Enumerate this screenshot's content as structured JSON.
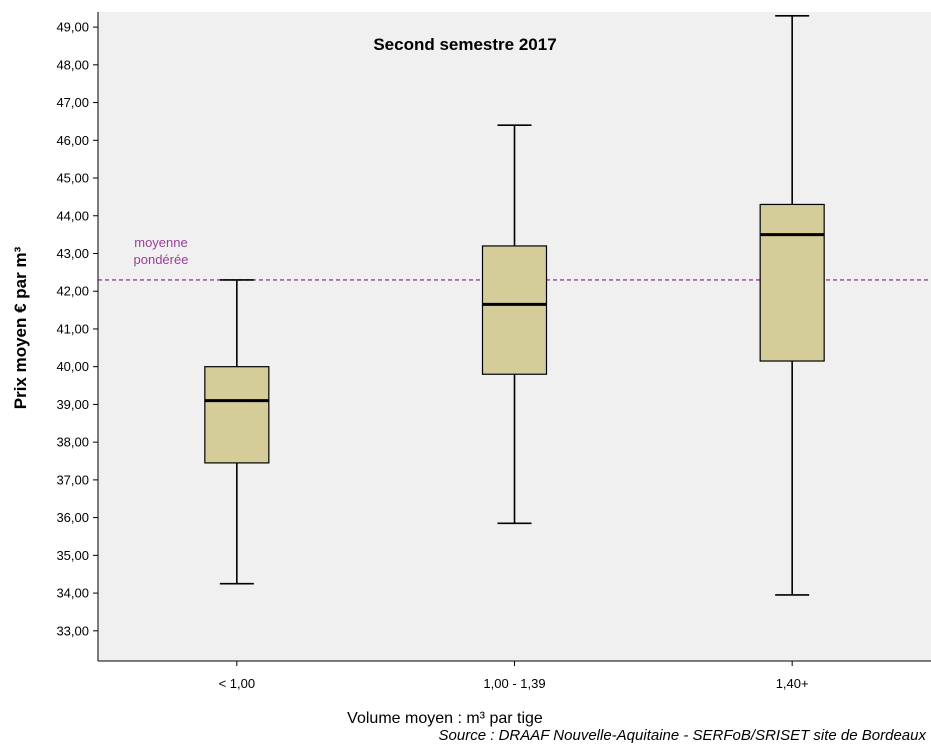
{
  "chart_data": {
    "type": "boxplot",
    "title": "Second semestre 2017",
    "xlabel": "Volume moyen : m³ par tige",
    "ylabel": "Prix moyen € par m³",
    "source": "Source : DRAAF Nouvelle-Aquitaine - SERFoB/SRISET site de Bordeaux",
    "ylim": [
      32.2,
      49.4
    ],
    "yticks": [
      33,
      34,
      35,
      36,
      37,
      38,
      39,
      40,
      41,
      42,
      43,
      44,
      45,
      46,
      47,
      48,
      49
    ],
    "ytick_labels": [
      "33,00",
      "34,00",
      "35,00",
      "36,00",
      "37,00",
      "38,00",
      "39,00",
      "40,00",
      "41,00",
      "42,00",
      "43,00",
      "44,00",
      "45,00",
      "46,00",
      "47,00",
      "48,00",
      "49,00"
    ],
    "categories": [
      "< 1,00",
      "1,00 - 1,39",
      "1,40+"
    ],
    "boxes": [
      {
        "category": "< 1,00",
        "whisker_low": 34.25,
        "q1": 37.45,
        "median": 39.1,
        "q3": 40.0,
        "whisker_high": 42.3
      },
      {
        "category": "1,00 - 1,39",
        "whisker_low": 35.85,
        "q1": 39.8,
        "median": 41.65,
        "q3": 43.2,
        "whisker_high": 46.4
      },
      {
        "category": "1,40+",
        "whisker_low": 33.95,
        "q1": 40.15,
        "median": 43.5,
        "q3": 44.3,
        "whisker_high": 49.3
      }
    ],
    "reference_line": {
      "value": 42.3,
      "label_lines": [
        "moyenne",
        "pondérée"
      ],
      "color": "#9b3f96",
      "style": "dashed"
    },
    "colors": {
      "box_fill": "#d4cc99",
      "plot_background": "#f0f0f0",
      "axis": "#000000"
    },
    "grid": false,
    "legend": "none"
  }
}
